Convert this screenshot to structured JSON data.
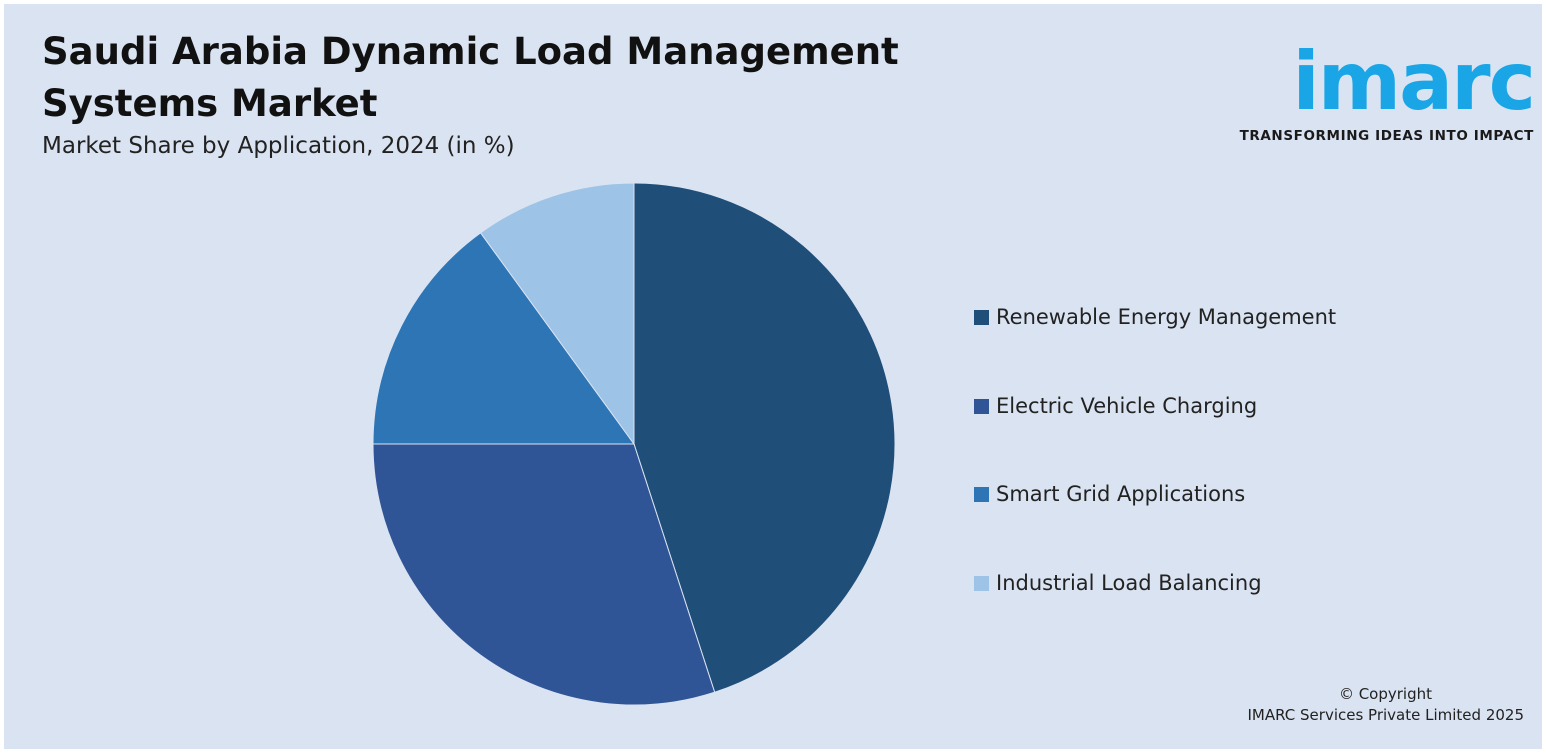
{
  "title": "Saudi Arabia Dynamic Load Management Systems Market",
  "subtitle": "Market Share by Application, 2024 (in %)",
  "logo": {
    "word": "imarc",
    "tagline": "TRANSFORMING IDEAS INTO IMPACT",
    "color": "#1aa6e6"
  },
  "chart_data": {
    "type": "pie",
    "title": "Saudi Arabia Dynamic Load Management Systems Market",
    "subtitle": "Market Share by Application, 2024 (in %)",
    "legend_position": "right",
    "categories": [
      "Renewable Energy Management",
      "Electric Vehicle Charging",
      "Smart Grid Applications",
      "Industrial Load Balancing"
    ],
    "values": [
      45,
      30,
      15,
      10
    ],
    "colors": [
      "#1f4e79",
      "#2f5597",
      "#2e75b6",
      "#9dc3e6"
    ]
  },
  "legend": [
    {
      "label": "Renewable Energy Management",
      "color": "#1f4e79"
    },
    {
      "label": "Electric Vehicle Charging",
      "color": "#2f5597"
    },
    {
      "label": "Smart Grid Applications",
      "color": "#2e75b6"
    },
    {
      "label": "Industrial Load Balancing",
      "color": "#9dc3e6"
    }
  ],
  "copyright": {
    "line1": "© Copyright",
    "line2": "IMARC Services Private Limited 2025"
  },
  "background_color": "#dae3f1"
}
